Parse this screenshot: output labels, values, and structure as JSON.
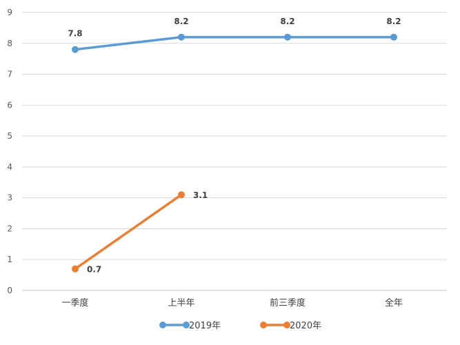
{
  "chart_data": {
    "type": "line",
    "title": "",
    "xlabel": "",
    "ylabel": "",
    "categories": [
      "一季度",
      "上半年",
      "前三季度",
      "全年"
    ],
    "ylim": [
      0,
      9
    ],
    "yticks": [
      0,
      1,
      2,
      3,
      4,
      5,
      6,
      7,
      8,
      9
    ],
    "grid": true,
    "legend_position": "bottom",
    "series": [
      {
        "name": "2019年",
        "color": "#5B9BD5",
        "values": [
          7.8,
          8.2,
          8.2,
          8.2
        ],
        "labels": [
          "7.8",
          "8.2",
          "8.2",
          "8.2"
        ]
      },
      {
        "name": "2020年",
        "color": "#ED7D31",
        "values": [
          0.7,
          3.1,
          null,
          null
        ],
        "labels": [
          "0.7",
          "3.1",
          "",
          ""
        ]
      }
    ]
  }
}
